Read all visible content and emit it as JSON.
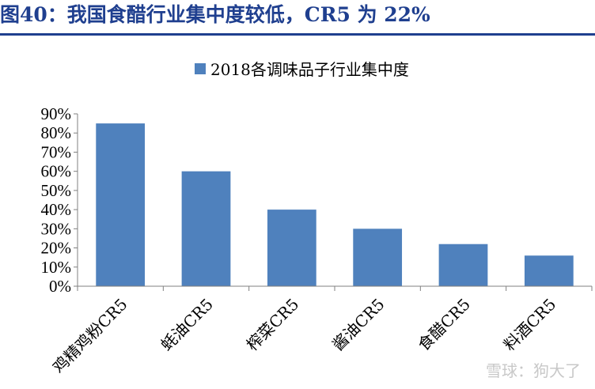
{
  "header": {
    "title": "图40：我国食醋行业集中度较低，CR5 为 22%"
  },
  "watermark": "雪球：狗大了",
  "colors": {
    "bar": "#4f81bd",
    "title": "#1f3f8f",
    "axis": "#808080"
  },
  "chart_data": {
    "type": "bar",
    "legend": "top",
    "grid": false,
    "categories": [
      "鸡精鸡粉CR5",
      "蚝油CR5",
      "榨菜CR5",
      "酱油CR5",
      "食醋CR5",
      "料酒CR5"
    ],
    "series": [
      {
        "name": "2018各调味品子行业集中度",
        "values": [
          85,
          60,
          40,
          30,
          22,
          16
        ]
      }
    ],
    "ylim": [
      0,
      90
    ],
    "yticks": [
      "0%",
      "10%",
      "20%",
      "30%",
      "40%",
      "50%",
      "60%",
      "70%",
      "80%",
      "90%"
    ],
    "unit": "%"
  }
}
